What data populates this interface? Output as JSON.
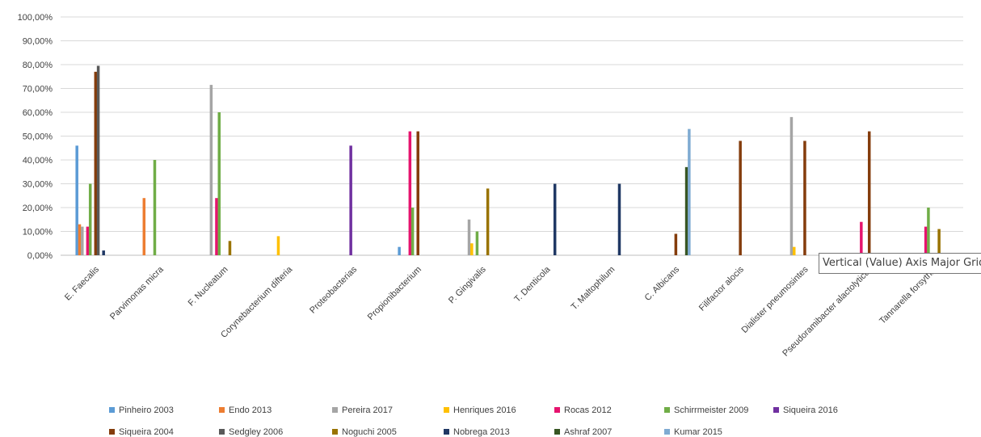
{
  "chart_data": {
    "type": "bar",
    "ylim": [
      0,
      100
    ],
    "y_ticks": [
      "0,00%",
      "10,00%",
      "20,00%",
      "30,00%",
      "40,00%",
      "50,00%",
      "60,00%",
      "70,00%",
      "80,00%",
      "90,00%",
      "100,00%"
    ],
    "grid": true,
    "legend_position": "bottom",
    "categories": [
      "E. Faecalis",
      "Parvimonas micra",
      "F. Nucleatum",
      "Corynebacterium difteria",
      "Proteobacterias",
      "Propionibacterium",
      "P. Gingivalis",
      "T. Denticola",
      "T. Maltophilum",
      "C. Albicans",
      "Filifactor alocis",
      "Dialister pneumosintes",
      "Pseudoramibacter alactolyticus",
      "Tannarella forsythia"
    ],
    "series": [
      {
        "name": "Pinheiro 2003",
        "color": "#5B9BD5",
        "values": [
          46,
          0,
          0,
          0,
          0,
          3.5,
          0,
          0,
          0,
          0,
          0,
          0,
          0,
          0
        ]
      },
      {
        "name": "Endo 2013",
        "color": "#ED7D31",
        "values": [
          13,
          24,
          0,
          0,
          0,
          0,
          0,
          0,
          0,
          0,
          0,
          0,
          0,
          0
        ]
      },
      {
        "name": "Pereira 2017",
        "color": "#A5A5A5",
        "values": [
          12,
          0,
          71.5,
          0,
          0,
          0,
          15,
          0,
          0,
          0,
          0,
          58,
          0,
          0
        ]
      },
      {
        "name": "Henriques 2016",
        "color": "#FFC000",
        "values": [
          0,
          0,
          0,
          8,
          0,
          0,
          5,
          0,
          0,
          0,
          0,
          3.5,
          0,
          0
        ]
      },
      {
        "name": "Rocas 2012",
        "color": "#E6136E",
        "values": [
          12,
          0,
          24,
          0,
          0,
          52,
          0,
          0,
          0,
          0,
          0,
          0,
          14,
          12
        ]
      },
      {
        "name": "Schirrmeister 2009",
        "color": "#70AD47",
        "values": [
          30,
          40,
          60,
          0,
          0,
          20,
          10,
          0,
          0,
          0,
          0,
          0,
          0,
          20
        ]
      },
      {
        "name": "Siqueira 2016",
        "color": "#7030A0",
        "values": [
          0,
          0,
          0,
          0,
          46,
          0,
          0,
          0,
          0,
          0,
          0,
          0,
          0,
          0
        ]
      },
      {
        "name": "Siqueira 2004",
        "color": "#843C0C",
        "values": [
          77,
          0,
          0,
          0,
          0,
          52,
          0,
          0,
          0,
          9,
          48,
          48,
          52,
          0
        ]
      },
      {
        "name": "Sedgley 2006",
        "color": "#595959",
        "values": [
          79.5,
          0,
          0,
          0,
          0,
          0,
          0,
          0,
          0,
          0,
          0,
          0,
          0,
          0
        ]
      },
      {
        "name": "Noguchi 2005",
        "color": "#997300",
        "values": [
          0,
          0,
          6,
          0,
          0,
          0,
          28,
          0,
          0,
          0,
          0,
          0,
          0,
          11
        ]
      },
      {
        "name": "Nobrega 2013",
        "color": "#203864",
        "values": [
          2,
          0,
          0,
          0,
          0,
          0,
          0,
          30,
          30,
          0,
          0,
          0,
          0,
          0
        ]
      },
      {
        "name": "Ashraf 2007",
        "color": "#375623",
        "values": [
          0,
          0,
          0,
          0,
          0,
          0,
          0,
          0,
          0,
          37,
          0,
          0,
          0,
          0
        ]
      },
      {
        "name": "Kumar 2015",
        "color": "#7FABD2",
        "values": [
          0,
          0,
          0,
          0,
          0,
          0,
          0,
          0,
          0,
          53,
          0,
          0,
          0,
          0
        ]
      }
    ]
  },
  "tooltip": {
    "text": "Vertical (Value) Axis Major Gridlines"
  }
}
